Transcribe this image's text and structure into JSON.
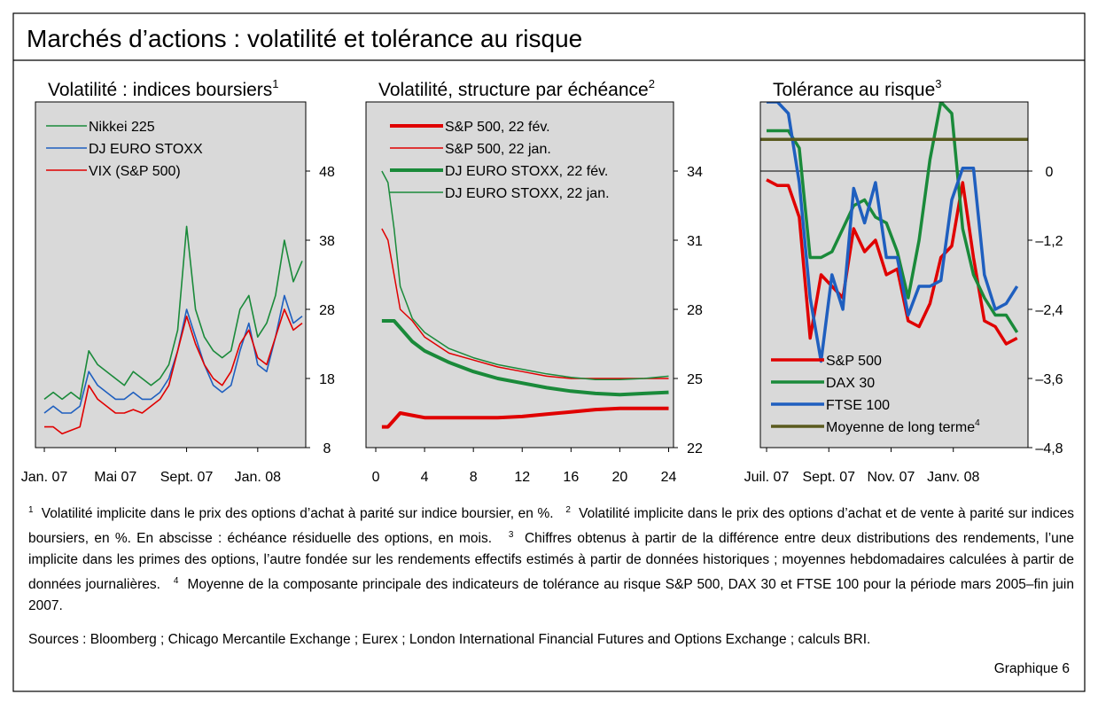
{
  "title": "Marchés d’actions : volatilité et tolérance au risque",
  "chart_data": [
    {
      "type": "line",
      "title": "Volatilité : indices boursiers",
      "title_ref": "1",
      "legend": "upper left",
      "line_width": 1.6,
      "x": [
        0,
        0.5,
        1,
        1.5,
        2,
        2.5,
        3,
        3.5,
        4,
        4.5,
        5,
        5.5,
        6,
        6.5,
        7,
        7.5,
        8,
        8.5,
        9,
        9.5,
        10,
        10.5,
        11,
        11.5,
        12,
        12.5,
        13,
        13.5,
        14,
        14.5
      ],
      "xlim": [
        -0.5,
        14.7
      ],
      "xticks": [
        {
          "value": 0,
          "label": "Jan. 07"
        },
        {
          "value": 4,
          "label": "Mai 07"
        },
        {
          "value": 8,
          "label": "Sept. 07"
        },
        {
          "value": 12,
          "label": "Jan. 08"
        }
      ],
      "ylim": [
        8,
        58
      ],
      "yticks": [
        8,
        18,
        28,
        38,
        48
      ],
      "series": [
        {
          "name": "Nikkei 225",
          "color": "#1a8a3a",
          "values": [
            15,
            16,
            15,
            16,
            15,
            22,
            20,
            19,
            18,
            17,
            19,
            18,
            17,
            18,
            20,
            25,
            40,
            28,
            24,
            22,
            21,
            22,
            28,
            30,
            24,
            26,
            30,
            38,
            32,
            35
          ]
        },
        {
          "name": "DJ EURO STOXX",
          "color": "#1f5fbf",
          "values": [
            13,
            14,
            13,
            13,
            14,
            19,
            17,
            16,
            15,
            15,
            16,
            15,
            15,
            16,
            18,
            22,
            28,
            24,
            20,
            17,
            16,
            17,
            22,
            26,
            20,
            19,
            24,
            30,
            26,
            27
          ]
        },
        {
          "name": "VIX (S&P 500)",
          "color": "#e00000",
          "values": [
            11,
            11,
            10,
            10.5,
            11,
            17,
            15,
            14,
            13,
            13,
            13.5,
            13,
            14,
            15,
            17,
            22,
            27,
            23,
            20,
            18,
            17,
            19,
            23,
            25,
            21,
            20,
            24,
            28,
            25,
            26
          ]
        }
      ]
    },
    {
      "type": "line",
      "title": "Volatilité, structure par échéance",
      "title_ref": "2",
      "legend": "upper left",
      "x": [
        0.5,
        1,
        1.5,
        2,
        3,
        4,
        6,
        8,
        10,
        12,
        14,
        16,
        18,
        20,
        22,
        24
      ],
      "xlim": [
        -0.8,
        24.4
      ],
      "xticks": [
        0,
        4,
        8,
        12,
        16,
        20,
        24
      ],
      "ylim": [
        22,
        37
      ],
      "yticks": [
        22,
        25,
        28,
        31,
        34
      ],
      "series": [
        {
          "name": "S&P 500, 22 fév.",
          "color": "#e00000",
          "line_width": 4,
          "values": [
            22.9,
            22.9,
            23.2,
            23.5,
            23.4,
            23.3,
            23.3,
            23.3,
            23.3,
            23.35,
            23.45,
            23.55,
            23.65,
            23.7,
            23.7,
            23.7
          ]
        },
        {
          "name": "S&P 500, 22 jan.",
          "color": "#e00000",
          "line_width": 1.5,
          "values": [
            31.5,
            31,
            29.5,
            28,
            27.5,
            26.8,
            26.1,
            25.8,
            25.5,
            25.3,
            25.1,
            25,
            25,
            25,
            25,
            25
          ]
        },
        {
          "name": "DJ EURO STOXX, 22 fév.",
          "color": "#1a8a3a",
          "line_width": 4,
          "values": [
            27.5,
            27.5,
            27.5,
            27.2,
            26.6,
            26.2,
            25.7,
            25.3,
            25,
            24.8,
            24.6,
            24.45,
            24.35,
            24.3,
            24.35,
            24.4
          ]
        },
        {
          "name": "DJ EURO STOXX, 22 jan.",
          "color": "#1a8a3a",
          "line_width": 1.5,
          "values": [
            34,
            33.5,
            31.5,
            29,
            27.6,
            27,
            26.3,
            25.9,
            25.6,
            25.4,
            25.2,
            25.05,
            24.95,
            24.95,
            25,
            25.1
          ]
        }
      ]
    },
    {
      "type": "line",
      "title": "Tolérance au risque",
      "title_ref": "3",
      "legend": "lower left",
      "line_width": 3.5,
      "zero_line": true,
      "x": [
        0,
        0.35,
        0.7,
        1.05,
        1.4,
        1.75,
        2.1,
        2.45,
        2.8,
        3.15,
        3.5,
        3.85,
        4.2,
        4.55,
        4.9,
        5.25,
        5.6,
        5.95,
        6.3,
        6.65,
        7,
        7.35,
        7.7,
        8.05
      ],
      "xlim": [
        -0.2,
        8.4
      ],
      "xticks": [
        {
          "value": 0,
          "label": "Juil. 07"
        },
        {
          "value": 2,
          "label": "Sept. 07"
        },
        {
          "value": 4,
          "label": "Nov. 07"
        },
        {
          "value": 6,
          "label": "Janv. 08"
        }
      ],
      "ylim": [
        -4.8,
        1.2
      ],
      "yticks": [
        {
          "value": -4.8,
          "label": "–4,8"
        },
        {
          "value": -3.6,
          "label": "–3,6"
        },
        {
          "value": -2.4,
          "label": "–2,4"
        },
        {
          "value": -1.2,
          "label": "–1,2"
        },
        0
      ],
      "series": [
        {
          "name": "S&P 500",
          "color": "#e00000",
          "values": [
            -0.15,
            -0.25,
            -0.25,
            -0.8,
            -2.9,
            -1.8,
            -2.0,
            -2.2,
            -1.0,
            -1.4,
            -1.2,
            -1.8,
            -1.7,
            -2.6,
            -2.7,
            -2.3,
            -1.5,
            -1.3,
            -0.2,
            -1.5,
            -2.6,
            -2.7,
            -3.0,
            -2.9
          ]
        },
        {
          "name": "DAX 30",
          "color": "#1a8a3a",
          "values": [
            0.7,
            0.7,
            0.7,
            0.4,
            -1.5,
            -1.5,
            -1.4,
            -1.0,
            -0.6,
            -0.5,
            -0.8,
            -0.9,
            -1.4,
            -2.2,
            -1.2,
            0.2,
            1.2,
            1.0,
            -1.0,
            -1.8,
            -2.2,
            -2.5,
            -2.5,
            -2.8
          ]
        },
        {
          "name": "FTSE 100",
          "color": "#1f5fbf",
          "values": [
            1.2,
            1.2,
            1.0,
            -0.2,
            -2.2,
            -3.3,
            -1.8,
            -2.4,
            -0.3,
            -0.9,
            -0.2,
            -1.5,
            -1.5,
            -2.5,
            -2.0,
            -2.0,
            -1.9,
            -0.5,
            0.05,
            0.05,
            -1.8,
            -2.4,
            -2.3,
            -2.0
          ]
        },
        {
          "name": "Moyenne de long terme",
          "footnote_ref": "4",
          "color": "#5a5a1e",
          "x": [
            -0.2,
            8.4
          ],
          "values": [
            0.55,
            0.55
          ]
        }
      ]
    }
  ],
  "notes": [
    {
      "ref": "1",
      "text": "Volatilité implicite dans le prix des options d’achat à parité sur indice boursier, en %."
    },
    {
      "ref": "2",
      "text": "Volatilité implicite dans le prix des options d’achat et de vente à parité sur indices boursiers, en %. En abscisse : échéance résiduelle des options, en mois."
    },
    {
      "ref": "3",
      "text": "Chiffres obtenus à partir de la différence entre deux distributions des rendements, l’une implicite dans les primes des options, l’autre fondée sur les rendements effectifs estimés à partir de données historiques ; moyennes hebdomadaires calculées à partir de données journalières."
    },
    {
      "ref": "4",
      "text": "Moyenne de la composante principale des indicateurs de tolérance au risque S&P 500, DAX 30 et FTSE 100 pour la période mars 2005–fin juin 2007."
    }
  ],
  "sources": "Sources : Bloomberg ; Chicago Mercantile Exchange ; Eurex ; London International Financial Futures and Options Exchange ; calculs BRI.",
  "label": "Graphique 6"
}
